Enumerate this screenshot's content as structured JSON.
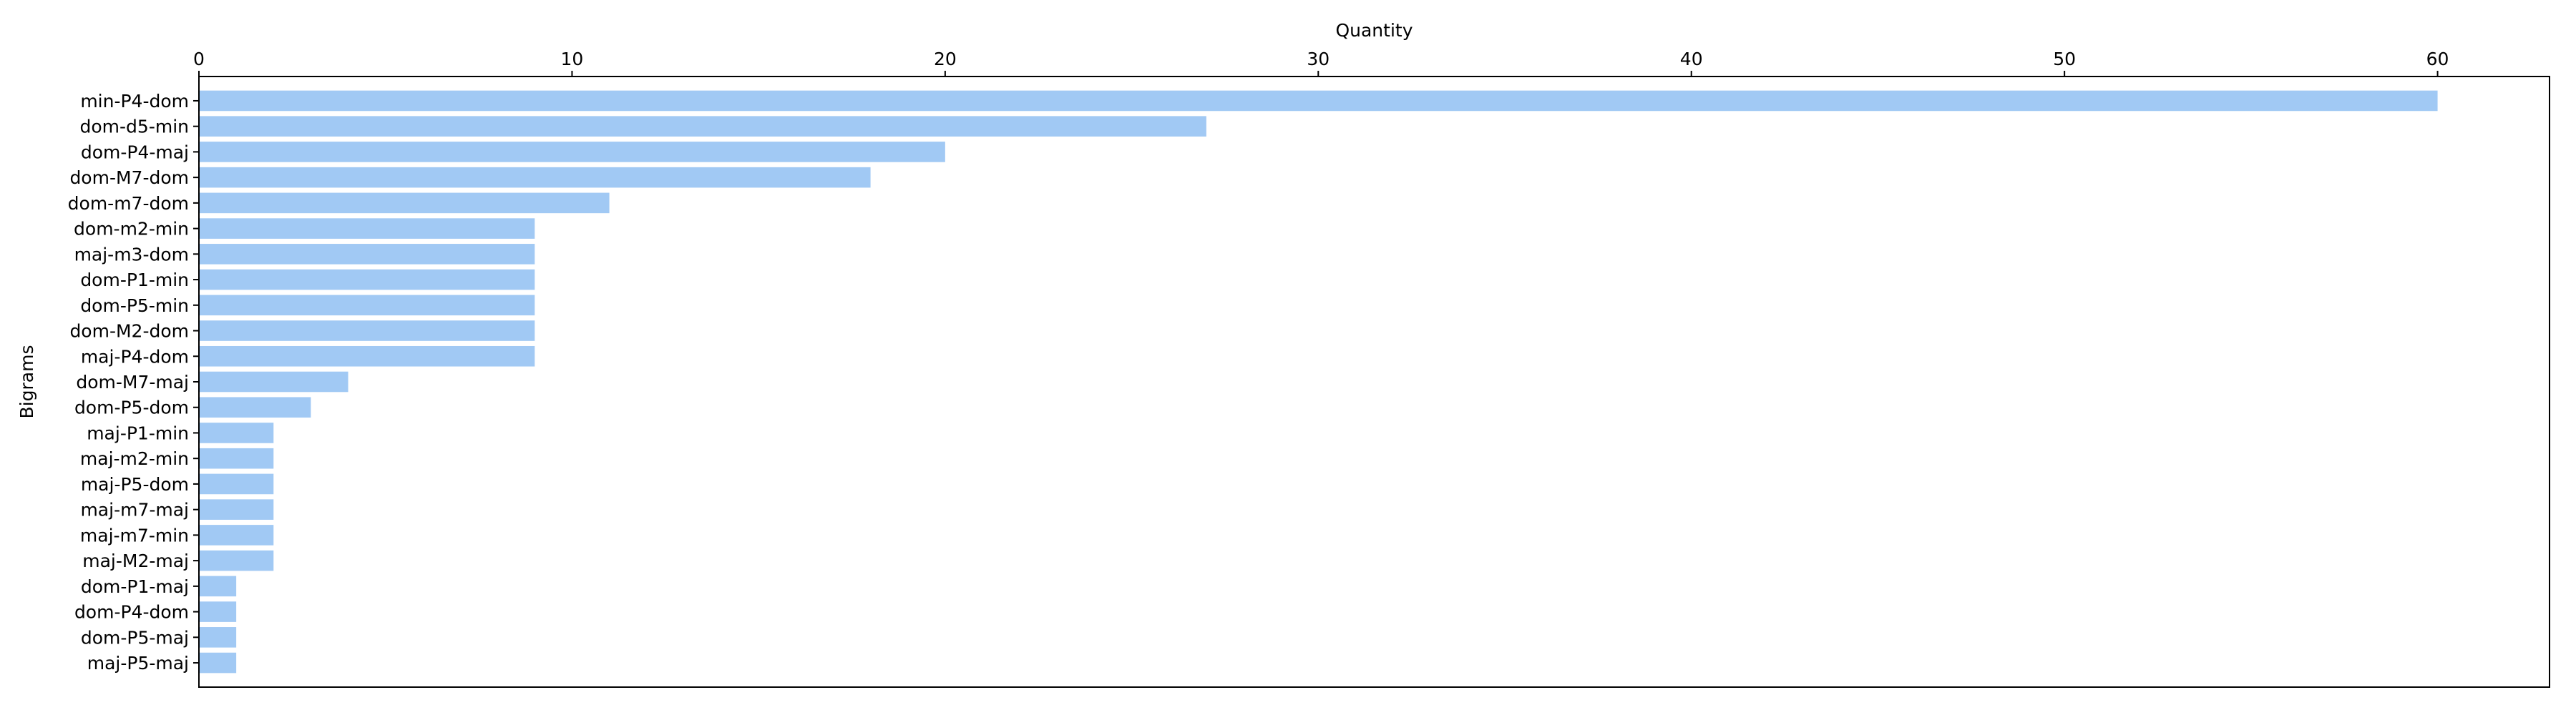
{
  "chart_data": {
    "type": "bar",
    "orientation": "horizontal",
    "title": "",
    "xlabel": "Quantity",
    "ylabel": "Bigrams",
    "x_axis_position": "top",
    "xlim": [
      0,
      63
    ],
    "xticks": [
      0,
      10,
      20,
      30,
      40,
      50,
      60
    ],
    "grid": false,
    "bar_color": "#a1c9f4",
    "categories": [
      "min-P4-dom",
      "dom-d5-min",
      "dom-P4-maj",
      "dom-M7-dom",
      "dom-m7-dom",
      "dom-m2-min",
      "maj-m3-dom",
      "dom-P1-min",
      "dom-P5-min",
      "dom-M2-dom",
      "maj-P4-dom",
      "dom-M7-maj",
      "dom-P5-dom",
      "maj-P1-min",
      "maj-m2-min",
      "maj-P5-dom",
      "maj-m7-maj",
      "maj-m7-min",
      "maj-M2-maj",
      "dom-P1-maj",
      "dom-P4-dom",
      "dom-P5-maj",
      "maj-P5-maj"
    ],
    "values": [
      60,
      27,
      20,
      18,
      11,
      9,
      9,
      9,
      9,
      9,
      9,
      4,
      3,
      2,
      2,
      2,
      2,
      2,
      2,
      1,
      1,
      1,
      1
    ]
  }
}
